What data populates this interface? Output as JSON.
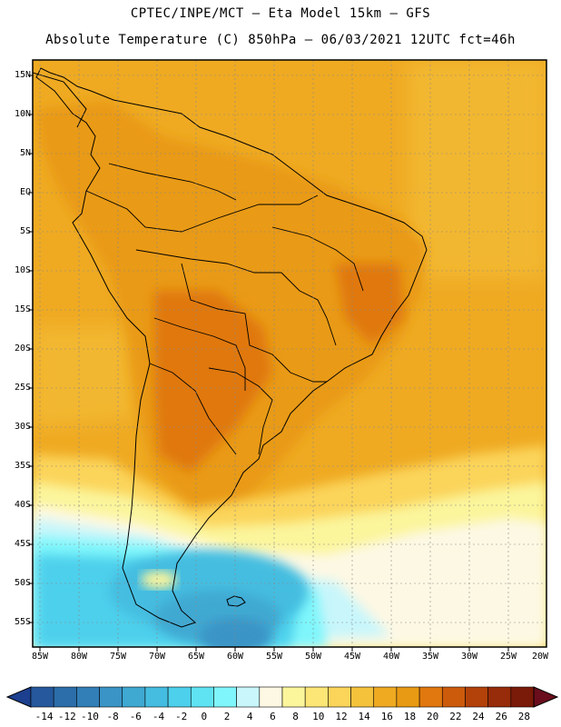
{
  "header": {
    "line1": "CPTEC/INPE/MCT –  Eta Model 15km – GFS",
    "line2": "Absolute Temperature (C) 850hPa – 06/03/2021 12UTC fct=46h"
  },
  "axes": {
    "lat_labels": [
      "15N",
      "10N",
      "5N",
      "EQ",
      "5S",
      "10S",
      "15S",
      "20S",
      "25S",
      "30S",
      "35S",
      "40S",
      "45S",
      "50S",
      "55S"
    ],
    "lon_labels": [
      "85W",
      "80W",
      "75W",
      "70W",
      "65W",
      "60W",
      "55W",
      "50W",
      "45W",
      "40W",
      "35W",
      "30W",
      "25W",
      "20W"
    ]
  },
  "colorbar": {
    "ticks": [
      "-14",
      "-12",
      "-10",
      "-8",
      "-6",
      "-4",
      "-2",
      "0",
      "2",
      "4",
      "6",
      "8",
      "10",
      "12",
      "14",
      "16",
      "18",
      "20",
      "22",
      "24",
      "26",
      "28"
    ],
    "colors": [
      "#1c3f8f",
      "#25589c",
      "#2c6eaa",
      "#327fb8",
      "#3a94c6",
      "#3fa9d2",
      "#44bde0",
      "#4dd0ec",
      "#5fe3f3",
      "#7ff6fb",
      "#c8f6fb",
      "#fdf8e4",
      "#fbf59c",
      "#fbe676",
      "#fbd45a",
      "#f5c23c",
      "#efaa22",
      "#e99a14",
      "#e0780f",
      "#cc5b0c",
      "#b3420a",
      "#962c09",
      "#7a1a08",
      "#6a0d1d"
    ]
  },
  "map_colors": {
    "ocean_warm": "#efaa22",
    "land_hot": "#e0780f",
    "cold_mid": "#44bde0",
    "cold_deep": "#3a94c6"
  }
}
